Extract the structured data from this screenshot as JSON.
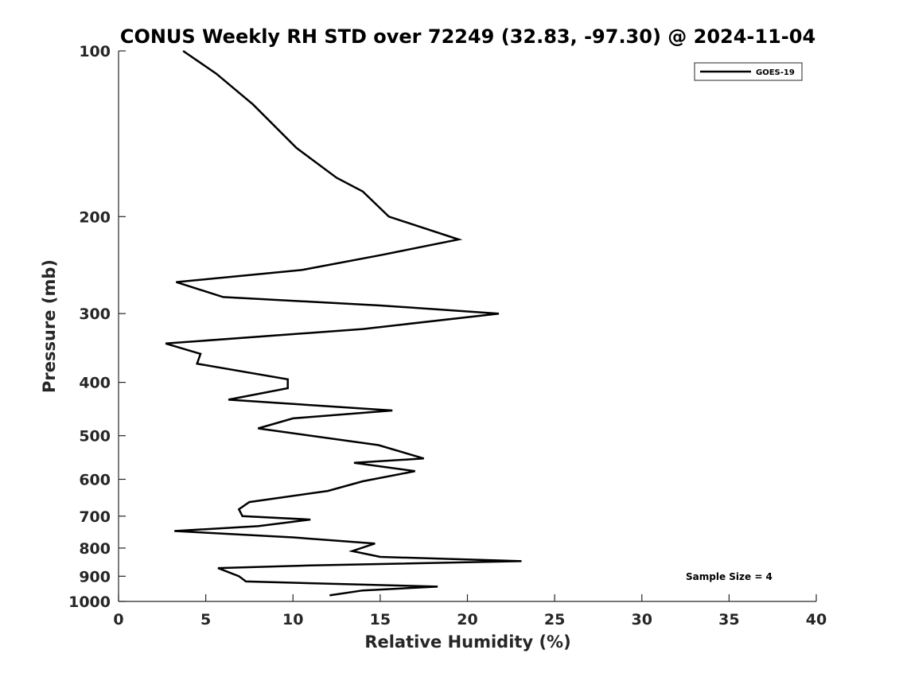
{
  "chart_data": {
    "type": "line",
    "title": "CONUS Weekly RH STD over 72249 (32.83, -97.30) @ 2024-11-04",
    "xlabel": "Relative Humidity (%)",
    "ylabel": "Pressure (mb)",
    "xlim": [
      0,
      40
    ],
    "ylim": [
      100,
      1000
    ],
    "y_scale": "log",
    "y_direction": "reversed",
    "x_ticks": [
      0,
      5,
      10,
      15,
      20,
      25,
      30,
      35,
      40
    ],
    "y_ticks": [
      100,
      200,
      300,
      400,
      500,
      600,
      700,
      800,
      900,
      1000
    ],
    "grid": false,
    "legend_position": "top-right",
    "annotation": "Sample Size = 4",
    "series": [
      {
        "name": "GOES-19",
        "color": "#000000",
        "x": [
          3.7,
          5.6,
          7.7,
          10.2,
          12.5,
          14.0,
          15.5,
          19.5,
          15.0,
          10.5,
          3.3,
          6.0,
          15.0,
          21.8,
          14.0,
          2.7,
          4.7,
          4.5,
          9.7,
          9.7,
          6.3,
          15.7,
          10.0,
          8.0,
          14.9,
          17.5,
          13.5,
          17.0,
          14.0,
          12.0,
          7.5,
          6.9,
          7.1,
          11.0,
          8.0,
          3.2,
          10.0,
          14.7,
          13.4,
          15.0,
          23.1,
          11.0,
          5.7,
          6.9,
          7.3,
          18.3,
          14.0,
          12.1
        ],
        "y": [
          100,
          110,
          125,
          150,
          170,
          180,
          200,
          220,
          235,
          250,
          263,
          280,
          290,
          300,
          320,
          340,
          355,
          370,
          395,
          410,
          430,
          450,
          465,
          485,
          520,
          550,
          560,
          580,
          605,
          630,
          660,
          680,
          700,
          710,
          730,
          745,
          765,
          785,
          810,
          830,
          845,
          860,
          870,
          900,
          920,
          940,
          955,
          975
        ]
      }
    ]
  }
}
